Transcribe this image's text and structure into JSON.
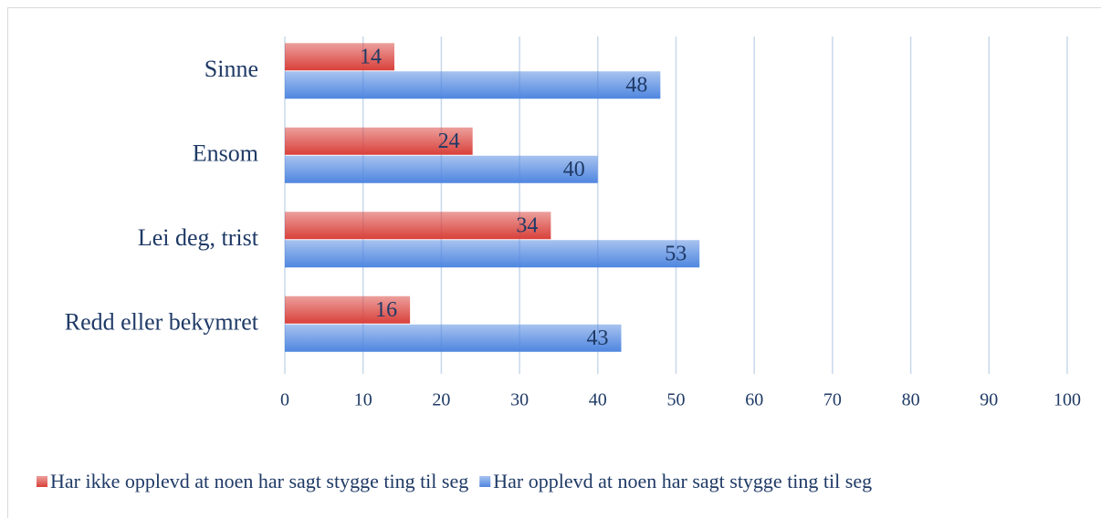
{
  "chart_data": {
    "type": "bar",
    "orientation": "horizontal",
    "categories": [
      "Sinne",
      "Ensom",
      "Lei deg, trist",
      "Redd eller bekymret"
    ],
    "series": [
      {
        "name": "Har ikke opplevd at noen har sagt stygge ting til seg",
        "color": "#d9403a",
        "values": [
          14,
          24,
          34,
          16
        ]
      },
      {
        "name": "Har opplevd at noen har sagt stygge ting til seg",
        "color": "#4f86e0",
        "values": [
          48,
          40,
          53,
          43
        ]
      }
    ],
    "xlim": [
      0,
      100
    ],
    "xticks": [
      0,
      10,
      20,
      30,
      40,
      50,
      60,
      70,
      80,
      90,
      100
    ],
    "grid": true,
    "legend": "bottom"
  }
}
